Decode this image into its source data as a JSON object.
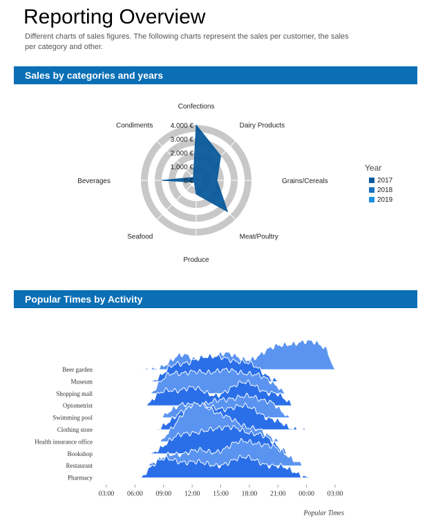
{
  "page": {
    "title": "Reporting Overview",
    "subtitle": "Different charts of sales figures. The following charts represent the sales per customer, the sales per category and other."
  },
  "sections": [
    {
      "title": "Sales by categories and years"
    },
    {
      "title": "Popular Times by Activity"
    }
  ],
  "colors": {
    "banner": "#0a6fb5",
    "series2017": "#0a5a9c",
    "series2018": "#1a73c0",
    "series2019": "#1e90e0",
    "ridge_dark": "#2b6fe8",
    "ridge_light": "#5a94f0"
  },
  "chart_data": [
    {
      "type": "radar",
      "categories": [
        "Confections",
        "Dairy Products",
        "Grains/Cereals",
        "Meat/Poultry",
        "Produce",
        "Seafood",
        "Beverages",
        "Condiments"
      ],
      "r_ticks": [
        "0 €",
        "1.000 €",
        "2.000 €",
        "3.000 €",
        "4.000 €"
      ],
      "rlim": [
        0,
        4000
      ],
      "legend_title": "Year",
      "legend_position": "right",
      "series": [
        {
          "name": "2017",
          "values": [
            4000,
            2500,
            1500,
            3200,
            1000,
            200,
            2500,
            300
          ]
        },
        {
          "name": "2018",
          "values": [
            0,
            0,
            0,
            0,
            0,
            0,
            0,
            0
          ]
        },
        {
          "name": "2019",
          "values": [
            0,
            0,
            0,
            0,
            0,
            0,
            0,
            0
          ]
        }
      ]
    },
    {
      "type": "area",
      "xlabel": "Popular Times",
      "x_ticks": [
        "03:00",
        "06:00",
        "09:00",
        "12:00",
        "15:00",
        "18:00",
        "21:00",
        "00:00",
        "03:00"
      ],
      "series": [
        {
          "name": "Beer garden",
          "start": 6.0,
          "end": 27.0,
          "peaks": [
            [
              11.0,
              0.55,
              1.2
            ],
            [
              15.5,
              0.6,
              1.5
            ],
            [
              20.5,
              0.7,
              1.6
            ],
            [
              24.5,
              1.0,
              2.0
            ]
          ]
        },
        {
          "name": "Museum",
          "start": 7.5,
          "end": 21.5,
          "peaks": [
            [
              10.0,
              0.5,
              1.0
            ],
            [
              12.5,
              0.65,
              1.3
            ],
            [
              15.0,
              0.75,
              1.4
            ],
            [
              18.0,
              0.6,
              1.3
            ]
          ]
        },
        {
          "name": "Shopping mall",
          "start": 7.5,
          "end": 22.0,
          "peaks": [
            [
              9.5,
              0.55,
              1.0
            ],
            [
              12.0,
              0.7,
              1.4
            ],
            [
              15.5,
              0.8,
              1.6
            ],
            [
              19.0,
              0.6,
              1.5
            ]
          ]
        },
        {
          "name": "Optometrist",
          "start": 7.0,
          "end": 23.0,
          "peaks": [
            [
              9.0,
              0.45,
              1.0
            ],
            [
              12.0,
              0.65,
              1.5
            ],
            [
              17.5,
              0.85,
              1.8
            ],
            [
              21.0,
              0.3,
              0.8
            ]
          ]
        },
        {
          "name": "Swimming pool",
          "start": 8.5,
          "end": 22.5,
          "peaks": [
            [
              11.0,
              0.45,
              1.2
            ],
            [
              14.5,
              0.55,
              1.5
            ],
            [
              18.0,
              0.75,
              1.6
            ],
            [
              20.5,
              0.3,
              0.8
            ]
          ]
        },
        {
          "name": "Clothing store",
          "start": 8.0,
          "end": 24.5,
          "peaks": [
            [
              11.0,
              0.5,
              1.3
            ],
            [
              13.5,
              0.7,
              1.5
            ],
            [
              17.5,
              0.85,
              1.8
            ],
            [
              21.0,
              0.2,
              0.8
            ]
          ]
        },
        {
          "name": "Health insurance office",
          "start": 8.5,
          "end": 21.5,
          "peaks": [
            [
              11.5,
              0.65,
              1.5
            ],
            [
              13.0,
              0.85,
              1.6
            ],
            [
              16.0,
              0.7,
              1.5
            ],
            [
              19.0,
              0.35,
              1.0
            ]
          ]
        },
        {
          "name": "Bookshop",
          "start": 7.5,
          "end": 22.5,
          "peaks": [
            [
              10.5,
              0.55,
              1.3
            ],
            [
              13.5,
              0.7,
              1.6
            ],
            [
              16.5,
              0.8,
              1.5
            ],
            [
              19.5,
              0.55,
              1.2
            ]
          ]
        },
        {
          "name": "Restaurant",
          "start": 7.0,
          "end": 24.0,
          "peaks": [
            [
              9.5,
              0.35,
              1.0
            ],
            [
              12.5,
              0.55,
              1.4
            ],
            [
              17.0,
              0.85,
              1.7
            ],
            [
              20.5,
              0.6,
              1.5
            ]
          ]
        },
        {
          "name": "Pharmacy",
          "start": 6.5,
          "end": 24.5,
          "peaks": [
            [
              9.0,
              0.65,
              1.3
            ],
            [
              12.5,
              0.55,
              1.6
            ],
            [
              17.5,
              0.75,
              1.8
            ],
            [
              21.5,
              0.35,
              1.2
            ]
          ]
        }
      ]
    }
  ]
}
